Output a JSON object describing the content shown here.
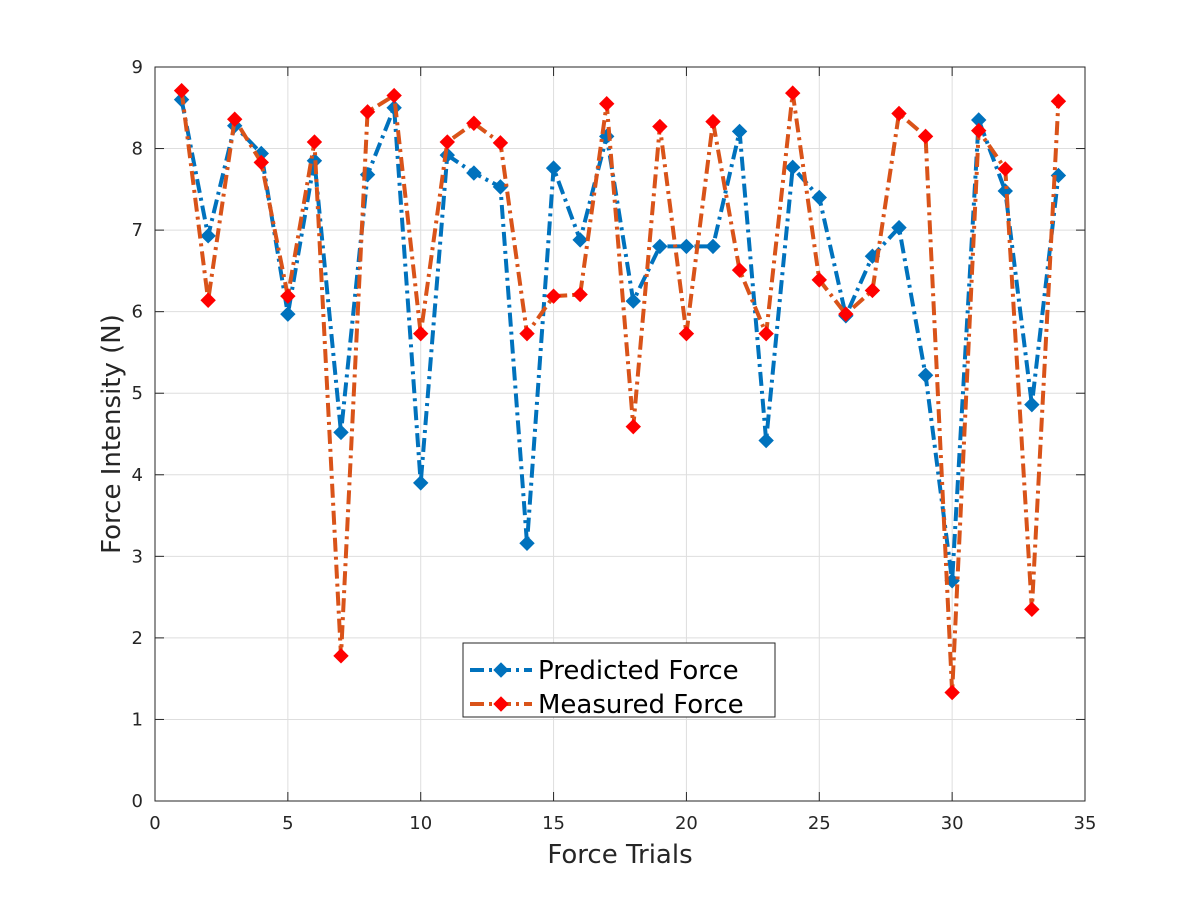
{
  "chart_data": {
    "type": "line",
    "title": "",
    "xlabel": "Force Trials",
    "ylabel": "Force Intensity (N)",
    "xlim": [
      0,
      35
    ],
    "ylim": [
      0,
      9
    ],
    "xticks": [
      0,
      5,
      10,
      15,
      20,
      25,
      30,
      35
    ],
    "yticks": [
      0,
      1,
      2,
      3,
      4,
      5,
      6,
      7,
      8,
      9
    ],
    "grid": true,
    "legend_position": "lower-center",
    "x": [
      1,
      2,
      3,
      4,
      5,
      6,
      7,
      8,
      9,
      10,
      11,
      12,
      13,
      14,
      15,
      16,
      17,
      18,
      19,
      20,
      21,
      22,
      23,
      24,
      25,
      26,
      27,
      28,
      29,
      30,
      31,
      32,
      33,
      34
    ],
    "series": [
      {
        "name": "Predicted Force",
        "line_color": "#0072bd",
        "marker_color": "#0072bd",
        "marker": "diamond",
        "line_style": "dash-dot",
        "values": [
          8.6,
          6.93,
          8.28,
          7.94,
          5.97,
          7.85,
          4.52,
          7.68,
          8.5,
          3.9,
          7.92,
          7.7,
          7.53,
          3.16,
          7.76,
          6.88,
          8.15,
          6.13,
          6.8,
          6.8,
          6.8,
          8.21,
          4.42,
          7.77,
          7.4,
          5.95,
          6.68,
          7.03,
          5.22,
          2.7,
          8.35,
          7.48,
          4.86,
          7.67
        ]
      },
      {
        "name": "Measured Force",
        "line_color": "#d95319",
        "marker_color": "#ff0000",
        "marker": "diamond",
        "line_style": "dash-dot",
        "values": [
          8.71,
          6.14,
          8.36,
          7.83,
          6.19,
          8.08,
          1.78,
          8.45,
          8.65,
          5.73,
          8.08,
          8.31,
          8.07,
          5.73,
          6.19,
          6.21,
          8.55,
          4.59,
          8.27,
          5.73,
          8.33,
          6.51,
          5.73,
          8.68,
          6.39,
          5.97,
          6.26,
          8.43,
          8.15,
          1.33,
          8.22,
          7.75,
          2.35,
          8.58
        ]
      }
    ]
  }
}
